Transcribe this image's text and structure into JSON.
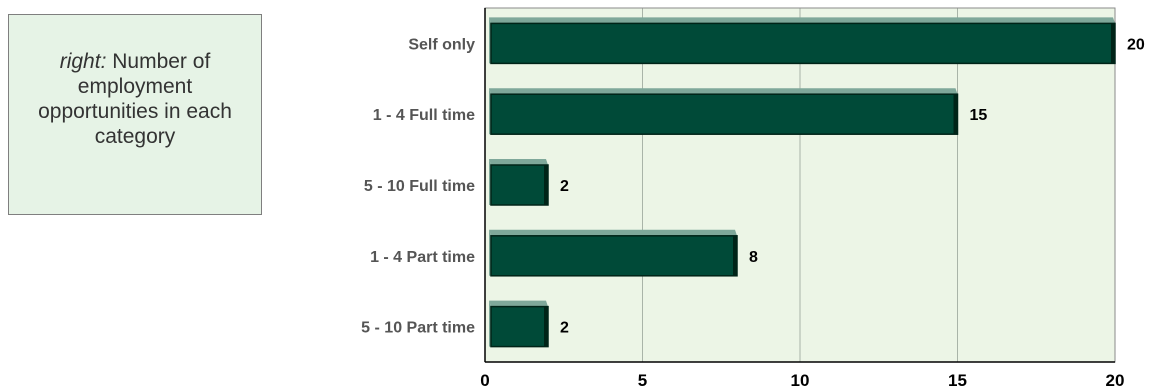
{
  "caption": {
    "prefix": "right:",
    "text": " Number of employment opportunities in each category"
  },
  "colors": {
    "bar_fill": "#004a38",
    "bar_top": "#7fa89a",
    "bar_edge": "#002418",
    "plot_bg": "#ecf5e6",
    "caption_bg": "#e6f3e6"
  },
  "chart_data": {
    "type": "bar",
    "orientation": "horizontal",
    "categories": [
      "Self only",
      "1 - 4 Full time",
      "5 - 10 Full time",
      "1 - 4 Part time",
      "5 - 10 Part time"
    ],
    "values": [
      20,
      15,
      2,
      8,
      2
    ],
    "data_labels": [
      "20",
      "15",
      "2",
      "8",
      "2"
    ],
    "xlim": [
      0,
      20
    ],
    "xticks": [
      0,
      5,
      10,
      15,
      20
    ],
    "xtick_labels": [
      "0",
      "5",
      "10",
      "15",
      "20"
    ],
    "grid": true,
    "title": "",
    "xlabel": "",
    "ylabel": ""
  }
}
